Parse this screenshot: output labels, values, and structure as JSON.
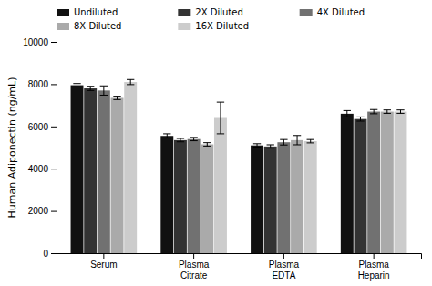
{
  "chart_data": {
    "type": "bar",
    "categories": [
      "Serum",
      "Plasma\nCitrate",
      "Plasma\nEDTA",
      "Plasma\nHeparin"
    ],
    "series": [
      {
        "name": "Undiluted",
        "color": "#111111",
        "values": [
          7950,
          5550,
          5100,
          6600
        ],
        "errors": [
          80,
          100,
          80,
          150
        ]
      },
      {
        "name": "2X Diluted",
        "color": "#333333",
        "values": [
          7800,
          5350,
          5050,
          6350
        ],
        "errors": [
          100,
          80,
          80,
          100
        ]
      },
      {
        "name": "4X Diluted",
        "color": "#717171",
        "values": [
          7700,
          5400,
          5250,
          6700
        ],
        "errors": [
          220,
          80,
          130,
          100
        ]
      },
      {
        "name": "8X Diluted",
        "color": "#aaaaaa",
        "values": [
          7350,
          5150,
          5350,
          6700
        ],
        "errors": [
          80,
          80,
          220,
          80
        ]
      },
      {
        "name": "16X Diluted",
        "color": "#cccccc",
        "values": [
          8100,
          6400,
          5300,
          6700
        ],
        "errors": [
          120,
          750,
          80,
          80
        ]
      }
    ],
    "ylabel": "Human Adiponectin (ng/mL)",
    "ylim": [
      0,
      10000
    ],
    "yticks": [
      0,
      2000,
      4000,
      6000,
      8000,
      10000
    ],
    "grid": false,
    "legend": "top"
  }
}
